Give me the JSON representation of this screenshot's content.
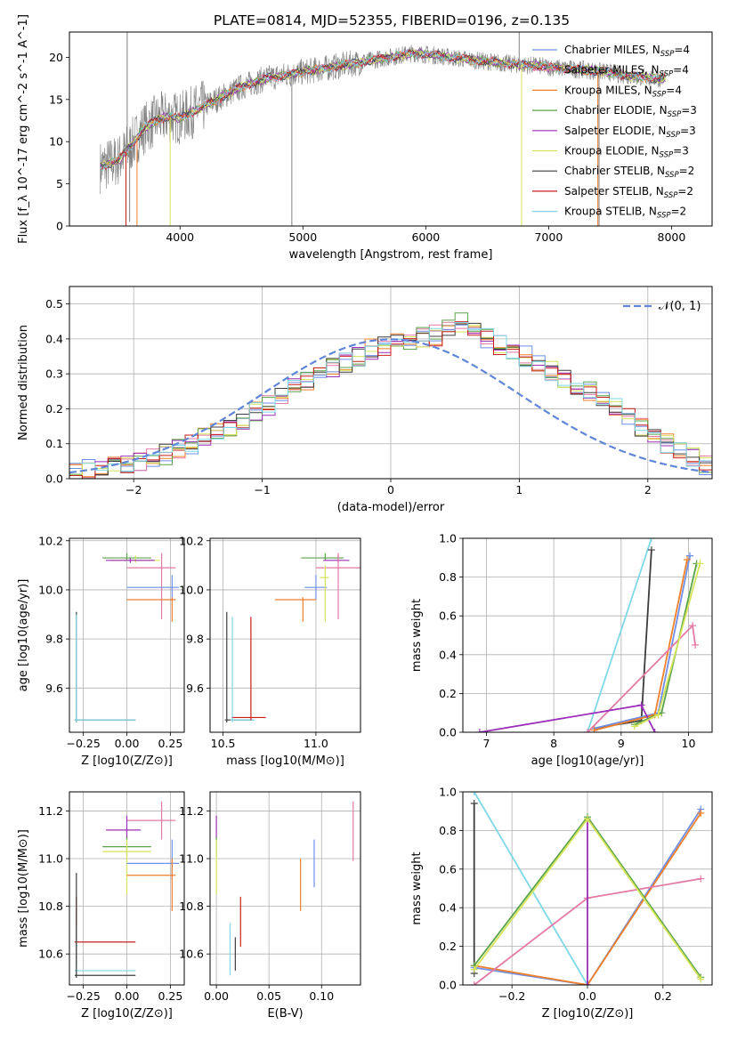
{
  "figure": {
    "title": "PLATE=0814, MJD=52355, FIBERID=0196, z=0.135"
  },
  "colors": {
    "chabrier_miles": "#6f8fe8",
    "salpeter_miles": "#e47aa6",
    "kroupa_miles": "#f07f2a",
    "chabrier_elodie": "#5aa34a",
    "salpeter_elodie": "#9a2fb8",
    "kroupa_elodie": "#d6e45a",
    "chabrier_stelib": "#3d3d3d",
    "salpeter_stelib": "#c81e1e",
    "kroupa_stelib": "#7fd8e6",
    "data": "#808080",
    "normal": "#5f86d8"
  },
  "chart_data": [
    {
      "id": "spectrum",
      "type": "line",
      "title": "PLATE=0814, MJD=52355, FIBERID=0196, z=0.135",
      "xlabel": "wavelength [Angstrom, rest frame]",
      "ylabel": "Flux [f_λ 10^-17 erg cm^-2 s^-1 A^-1]",
      "xlim": [
        3100,
        8330
      ],
      "ylim": [
        0,
        23
      ],
      "xticks": [
        "4000",
        "5000",
        "6000",
        "7000",
        "8000"
      ],
      "yticks": [
        "0",
        "5",
        "10",
        "15",
        "20"
      ],
      "grid": false,
      "legend_position": "right",
      "legend": [
        {
          "label": "Chabrier MILES, N",
          "sub": "SSP",
          "suffix": "=4",
          "color_key": "chabrier_miles"
        },
        {
          "label": "Salpeter MILES, N",
          "sub": "SSP",
          "suffix": "=4",
          "color_key": "salpeter_miles"
        },
        {
          "label": "Kroupa MILES, N",
          "sub": "SSP",
          "suffix": "=4",
          "color_key": "kroupa_miles"
        },
        {
          "label": "Chabrier ELODIE, N",
          "sub": "SSP",
          "suffix": "=3",
          "color_key": "chabrier_elodie"
        },
        {
          "label": "Salpeter ELODIE, N",
          "sub": "SSP",
          "suffix": "=3",
          "color_key": "salpeter_elodie"
        },
        {
          "label": "Kroupa ELODIE, N",
          "sub": "SSP",
          "suffix": "=3",
          "color_key": "kroupa_elodie"
        },
        {
          "label": "Chabrier STELIB, N",
          "sub": "SSP",
          "suffix": "=2",
          "color_key": "chabrier_stelib"
        },
        {
          "label": "Salpeter STELIB, N",
          "sub": "SSP",
          "suffix": "=2",
          "color_key": "salpeter_stelib"
        },
        {
          "label": "Kroupa STELIB, N",
          "sub": "SSP",
          "suffix": "=2",
          "color_key": "kroupa_stelib"
        }
      ],
      "continuum": {
        "x": [
          3350,
          3500,
          3600,
          3700,
          3800,
          3900,
          4000,
          4100,
          4300,
          4500,
          4700,
          4900,
          5100,
          5300,
          5500,
          5700,
          5900,
          6100,
          6300,
          6500,
          6700,
          6900,
          7100,
          7300,
          7500,
          7700,
          7900
        ],
        "y": [
          7.0,
          7.8,
          9.5,
          11.5,
          12.5,
          13.0,
          12.8,
          13.5,
          15.0,
          16.5,
          17.5,
          18.0,
          18.5,
          19.0,
          19.5,
          20.0,
          20.5,
          20.2,
          19.8,
          19.5,
          19.2,
          19.0,
          18.7,
          18.5,
          18.2,
          17.7,
          17.5
        ]
      },
      "model_dropouts": [
        {
          "x": 3560,
          "color_key": "salpeter_stelib"
        },
        {
          "x": 3650,
          "color_key": "kroupa_miles"
        },
        {
          "x": 3920,
          "color_key": "kroupa_elodie"
        },
        {
          "x": 6780,
          "color_key": "kroupa_elodie"
        },
        {
          "x": 7400,
          "color_key": "kroupa_miles"
        },
        {
          "x": 7410,
          "color_key": "salpeter_stelib"
        }
      ],
      "data_spikes": [
        {
          "x": 3570,
          "y": 23
        },
        {
          "x": 3590,
          "y": 0.5
        },
        {
          "x": 4910,
          "y": 0
        },
        {
          "x": 6760,
          "y": 23
        },
        {
          "x": 7410,
          "y": 0
        }
      ]
    },
    {
      "id": "residuals",
      "type": "histogram",
      "xlabel": "(data-model)/error",
      "ylabel": "Normed distribution",
      "xlim": [
        -2.5,
        2.5
      ],
      "ylim": [
        0,
        0.55
      ],
      "xticks": [
        "−2",
        "−1",
        "0",
        "1",
        "2"
      ],
      "yticks": [
        "0.0",
        "0.1",
        "0.2",
        "0.3",
        "0.4",
        "0.5"
      ],
      "grid": true,
      "legend_position": "top-right",
      "legend_label": "𝒩(0, 1)",
      "bins": 50,
      "base_heights": [
        0.02,
        0.025,
        0.03,
        0.04,
        0.045,
        0.05,
        0.06,
        0.07,
        0.085,
        0.1,
        0.115,
        0.13,
        0.15,
        0.17,
        0.19,
        0.21,
        0.235,
        0.26,
        0.28,
        0.3,
        0.32,
        0.335,
        0.35,
        0.37,
        0.38,
        0.39,
        0.4,
        0.405,
        0.41,
        0.43,
        0.45,
        0.42,
        0.4,
        0.38,
        0.37,
        0.35,
        0.33,
        0.31,
        0.29,
        0.27,
        0.25,
        0.23,
        0.2,
        0.18,
        0.15,
        0.12,
        0.1,
        0.08,
        0.06,
        0.04
      ]
    },
    {
      "id": "age-vs-Z",
      "type": "scatter",
      "xlabel": "Z [log10(Z/Z⊙)]",
      "ylabel": "age  [log10(age/yr)]",
      "xlim": [
        -0.33,
        0.33
      ],
      "ylim": [
        9.42,
        10.21
      ],
      "xticks": [
        "−0.25",
        "0.00",
        "0.25"
      ],
      "yticks": [
        "9.6",
        "9.8",
        "10.0",
        "10.2"
      ],
      "grid": true,
      "points": [
        {
          "x": 0.0,
          "y": 10.13,
          "xerr": [
            0.14,
            0.14
          ],
          "yerr": [
            0.01,
            0.02
          ],
          "color_key": "chabrier_elodie"
        },
        {
          "x": 0.05,
          "y": 10.12,
          "xerr": [
            0.14,
            0.14
          ],
          "yerr": [
            0.01,
            0.02
          ],
          "color_key": "kroupa_elodie"
        },
        {
          "x": 0.02,
          "y": 10.12,
          "xerr": [
            0.14,
            0.14
          ],
          "yerr": [
            0.01,
            0.01
          ],
          "color_key": "salpeter_elodie"
        },
        {
          "x": 0.2,
          "y": 10.09,
          "xerr": [
            0.2,
            0.08
          ],
          "yerr": [
            0.21,
            0.06
          ],
          "color_key": "salpeter_miles"
        },
        {
          "x": 0.26,
          "y": 10.01,
          "xerr": [
            0.26,
            0.04
          ],
          "yerr": [
            0.05,
            0.05
          ],
          "color_key": "chabrier_miles"
        },
        {
          "x": 0.26,
          "y": 9.96,
          "xerr": [
            0.26,
            0.02
          ],
          "yerr": [
            0.09,
            0.01
          ],
          "color_key": "kroupa_miles"
        },
        {
          "x": -0.29,
          "y": 9.47,
          "xerr": [
            0.01,
            0.34
          ],
          "yerr": [
            0.01,
            0.44
          ],
          "color_key": "chabrier_stelib"
        },
        {
          "x": -0.29,
          "y": 9.47,
          "xerr": [
            0.01,
            0.34
          ],
          "yerr": [
            0.01,
            0.43
          ],
          "color_key": "kroupa_stelib"
        }
      ]
    },
    {
      "id": "age-vs-mass",
      "type": "scatter",
      "xlabel": "mass [log10(M/M⊙)]",
      "ylabel": "",
      "xlim": [
        10.43,
        11.24
      ],
      "ylim": [
        9.42,
        10.21
      ],
      "xticks": [
        "10.5",
        "11.0"
      ],
      "yticks": [
        "9.6",
        "9.8",
        "10.0",
        "10.2"
      ],
      "grid": true,
      "points": [
        {
          "x": 11.05,
          "y": 10.13,
          "xerr": [
            0.13,
            0.1
          ],
          "yerr": [
            0.01,
            0.02
          ],
          "color_key": "chabrier_elodie"
        },
        {
          "x": 11.12,
          "y": 10.12,
          "xerr": [
            0.08,
            0.06
          ],
          "yerr": [
            0.01,
            0.02
          ],
          "color_key": "salpeter_elodie"
        },
        {
          "x": 11.12,
          "y": 10.09,
          "xerr": [
            0.12,
            0.12
          ],
          "yerr": [
            0.21,
            0.06
          ],
          "color_key": "salpeter_miles"
        },
        {
          "x": 11.0,
          "y": 10.01,
          "xerr": [
            0.06,
            0.06
          ],
          "yerr": [
            0.05,
            0.05
          ],
          "color_key": "chabrier_miles"
        },
        {
          "x": 10.93,
          "y": 9.96,
          "xerr": [
            0.15,
            0.07
          ],
          "yerr": [
            0.09,
            0.01
          ],
          "color_key": "kroupa_miles"
        },
        {
          "x": 11.05,
          "y": 10.05,
          "xerr": [
            0.03,
            0.02
          ],
          "yerr": [
            0.18,
            0.05
          ],
          "color_key": "kroupa_elodie"
        },
        {
          "x": 10.52,
          "y": 9.47,
          "xerr": [
            0.01,
            0.14
          ],
          "yerr": [
            0.01,
            0.44
          ],
          "color_key": "chabrier_stelib"
        },
        {
          "x": 10.55,
          "y": 9.47,
          "xerr": [
            0.01,
            0.12
          ],
          "yerr": [
            0.01,
            0.42
          ],
          "color_key": "kroupa_stelib"
        },
        {
          "x": 10.65,
          "y": 9.48,
          "xerr": [
            0.1,
            0.08
          ],
          "yerr": [
            0.01,
            0.41
          ],
          "color_key": "salpeter_stelib"
        }
      ]
    },
    {
      "id": "weight-vs-age",
      "type": "line",
      "xlabel": "age  [log10(age/yr)]",
      "ylabel": "mass weight",
      "xlim": [
        6.65,
        10.35
      ],
      "ylim": [
        0,
        1
      ],
      "xticks": [
        "7",
        "8",
        "9",
        "10"
      ],
      "yticks": [
        "0.0",
        "0.2",
        "0.4",
        "0.6",
        "0.8",
        "1.0"
      ],
      "grid": true,
      "series": [
        {
          "color_key": "kroupa_stelib",
          "x": [
            8.5,
            9.45
          ],
          "y": [
            0.0,
            1.0
          ]
        },
        {
          "color_key": "chabrier_stelib",
          "x": [
            8.6,
            9.3,
            9.45
          ],
          "y": [
            0.02,
            0.06,
            0.94
          ]
        },
        {
          "color_key": "chabrier_miles",
          "x": [
            8.6,
            9.55,
            10.02
          ],
          "y": [
            0.02,
            0.1,
            0.91
          ]
        },
        {
          "color_key": "kroupa_miles",
          "x": [
            8.6,
            9.5,
            9.98
          ],
          "y": [
            0.01,
            0.09,
            0.89
          ]
        },
        {
          "color_key": "salpeter_miles",
          "x": [
            8.5,
            10.06,
            10.1
          ],
          "y": [
            0.0,
            0.55,
            0.45
          ]
        },
        {
          "color_key": "salpeter_elodie",
          "x": [
            6.9,
            9.3,
            9.5
          ],
          "y": [
            0.0,
            0.14,
            0.0
          ]
        },
        {
          "color_key": "chabrier_elodie",
          "x": [
            9.2,
            9.6,
            10.12
          ],
          "y": [
            0.04,
            0.1,
            0.87
          ]
        },
        {
          "color_key": "kroupa_elodie",
          "x": [
            9.2,
            9.55,
            10.17
          ],
          "y": [
            0.03,
            0.09,
            0.87
          ]
        }
      ]
    },
    {
      "id": "mass-vs-Z",
      "type": "scatter",
      "xlabel": "Z [log10(Z/Z⊙)]",
      "ylabel": "mass [log10(M/M⊙)]",
      "xlim": [
        -0.33,
        0.33
      ],
      "ylim": [
        10.47,
        11.28
      ],
      "xticks": [
        "−0.25",
        "0.00",
        "0.25"
      ],
      "yticks": [
        "10.6",
        "10.8",
        "11.0",
        "11.2"
      ],
      "grid": true,
      "points": [
        {
          "x": 0.2,
          "y": 11.16,
          "xerr": [
            0.2,
            0.08
          ],
          "yerr": [
            0.08,
            0.08
          ],
          "color_key": "salpeter_miles"
        },
        {
          "x": 0.0,
          "y": 11.12,
          "xerr": [
            0.12,
            0.08
          ],
          "yerr": [
            0.04,
            0.06
          ],
          "color_key": "salpeter_elodie"
        },
        {
          "x": 0.0,
          "y": 11.05,
          "xerr": [
            0.14,
            0.14
          ],
          "yerr": [
            0.04,
            0.04
          ],
          "color_key": "chabrier_elodie"
        },
        {
          "x": 0.0,
          "y": 11.03,
          "xerr": [
            0.14,
            0.14
          ],
          "yerr": [
            0.18,
            0.05
          ],
          "color_key": "kroupa_elodie"
        },
        {
          "x": 0.26,
          "y": 10.98,
          "xerr": [
            0.26,
            0.04
          ],
          "yerr": [
            0.07,
            0.1
          ],
          "color_key": "chabrier_miles"
        },
        {
          "x": 0.26,
          "y": 10.93,
          "xerr": [
            0.26,
            0.02
          ],
          "yerr": [
            0.15,
            0.07
          ],
          "color_key": "kroupa_miles"
        },
        {
          "x": -0.29,
          "y": 10.65,
          "xerr": [
            0.01,
            0.34
          ],
          "yerr": [
            0.1,
            0.19
          ],
          "color_key": "salpeter_stelib"
        },
        {
          "x": -0.29,
          "y": 10.53,
          "xerr": [
            0.01,
            0.34
          ],
          "yerr": [
            0.02,
            0.19
          ],
          "color_key": "kroupa_stelib"
        },
        {
          "x": -0.29,
          "y": 10.51,
          "xerr": [
            0.01,
            0.34
          ],
          "yerr": [
            0.01,
            0.43
          ],
          "color_key": "chabrier_stelib"
        }
      ]
    },
    {
      "id": "mass-vs-ebv",
      "type": "scatter",
      "xlabel": "E(B-V)",
      "ylabel": "",
      "xlim": [
        -0.006,
        0.137
      ],
      "ylim": [
        10.47,
        11.28
      ],
      "xticks": [
        "0.00",
        "0.05",
        "0.10"
      ],
      "yticks": [
        "10.6",
        "10.8",
        "11.0",
        "11.2"
      ],
      "grid": true,
      "points": [
        {
          "x": 0.0,
          "y": 11.12,
          "yerr": [
            0.04,
            0.06
          ],
          "color_key": "salpeter_elodie"
        },
        {
          "x": 0.0,
          "y": 11.05,
          "yerr": [
            0.04,
            0.04
          ],
          "color_key": "chabrier_elodie"
        },
        {
          "x": 0.0,
          "y": 11.03,
          "yerr": [
            0.18,
            0.05
          ],
          "color_key": "kroupa_elodie"
        },
        {
          "x": 0.13,
          "y": 11.16,
          "yerr": [
            0.17,
            0.08
          ],
          "color_key": "salpeter_miles"
        },
        {
          "x": 0.093,
          "y": 10.98,
          "yerr": [
            0.1,
            0.1
          ],
          "color_key": "chabrier_miles"
        },
        {
          "x": 0.08,
          "y": 10.93,
          "yerr": [
            0.15,
            0.07
          ],
          "color_key": "kroupa_miles"
        },
        {
          "x": 0.023,
          "y": 10.71,
          "yerr": [
            0.08,
            0.13
          ],
          "color_key": "salpeter_stelib"
        },
        {
          "x": 0.018,
          "y": 10.59,
          "yerr": [
            0.06,
            0.08
          ],
          "color_key": "chabrier_stelib"
        },
        {
          "x": 0.013,
          "y": 10.61,
          "yerr": [
            0.1,
            0.12
          ],
          "color_key": "kroupa_stelib"
        }
      ]
    },
    {
      "id": "weight-vs-Z",
      "type": "line",
      "xlabel": "Z [log10(Z/Z⊙)]",
      "ylabel": "mass weight",
      "xlim": [
        -0.33,
        0.33
      ],
      "ylim": [
        0,
        1
      ],
      "xticks": [
        "−0.2",
        "0.0",
        "0.2"
      ],
      "yticks": [
        "0.0",
        "0.2",
        "0.4",
        "0.6",
        "0.8",
        "1.0"
      ],
      "grid": true,
      "series": [
        {
          "color_key": "kroupa_stelib",
          "x": [
            -0.3,
            0.0
          ],
          "y": [
            1.0,
            0.0
          ]
        },
        {
          "color_key": "chabrier_stelib",
          "x": [
            -0.3,
            -0.3
          ],
          "y": [
            0.06,
            0.94
          ]
        },
        {
          "color_key": "chabrier_miles",
          "x": [
            -0.3,
            0.0,
            0.3
          ],
          "y": [
            0.09,
            0.0,
            0.91
          ]
        },
        {
          "color_key": "kroupa_miles",
          "x": [
            -0.3,
            0.0,
            0.3
          ],
          "y": [
            0.1,
            0.0,
            0.89
          ]
        },
        {
          "color_key": "salpeter_miles",
          "x": [
            -0.3,
            0.0,
            0.3
          ],
          "y": [
            0.0,
            0.45,
            0.55
          ]
        },
        {
          "color_key": "salpeter_elodie",
          "x": [
            0.0,
            0.0
          ],
          "y": [
            0.0,
            0.86
          ]
        },
        {
          "color_key": "chabrier_elodie",
          "x": [
            -0.3,
            0.0,
            0.3
          ],
          "y": [
            0.1,
            0.87,
            0.04
          ]
        },
        {
          "color_key": "kroupa_elodie",
          "x": [
            -0.3,
            0.0,
            0.3
          ],
          "y": [
            0.08,
            0.86,
            0.03
          ]
        }
      ]
    }
  ]
}
